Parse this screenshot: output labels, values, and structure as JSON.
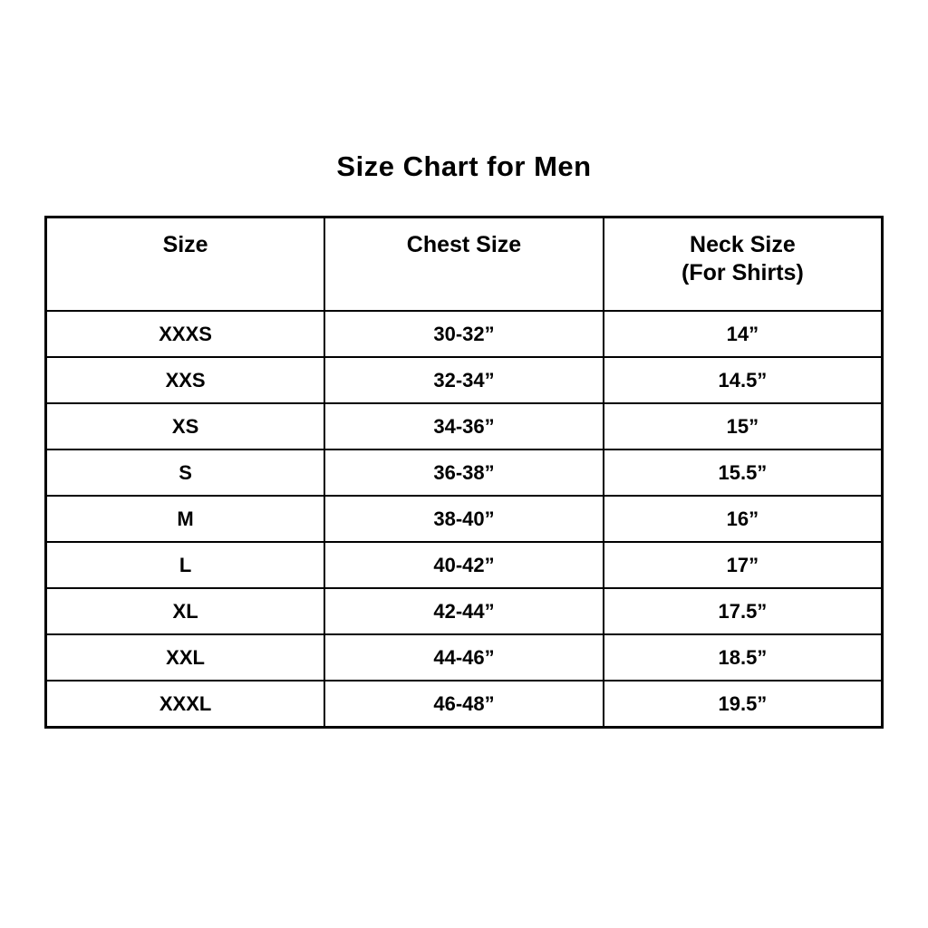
{
  "page": {
    "title": "Size Chart for Men"
  },
  "table": {
    "headers": [
      {
        "line1": "Size",
        "line2": ""
      },
      {
        "line1": "Chest Size",
        "line2": ""
      },
      {
        "line1": "Neck Size",
        "line2": "(For Shirts)"
      }
    ],
    "rows": [
      {
        "size": "XXXS",
        "chest": "30-32”",
        "neck": "14”"
      },
      {
        "size": "XXS",
        "chest": "32-34”",
        "neck": "14.5”"
      },
      {
        "size": "XS",
        "chest": "34-36”",
        "neck": "15”"
      },
      {
        "size": "S",
        "chest": "36-38”",
        "neck": "15.5”"
      },
      {
        "size": "M",
        "chest": "38-40”",
        "neck": "16”"
      },
      {
        "size": "L",
        "chest": "40-42”",
        "neck": "17”"
      },
      {
        "size": "XL",
        "chest": "42-44”",
        "neck": "17.5”"
      },
      {
        "size": "XXL",
        "chest": "44-46”",
        "neck": "18.5”"
      },
      {
        "size": "XXXL",
        "chest": "46-48”",
        "neck": "19.5”"
      }
    ]
  },
  "chart_data": {
    "type": "table",
    "title": "Size Chart for Men",
    "columns": [
      "Size",
      "Chest Size",
      "Neck Size (For Shirts)"
    ],
    "rows": [
      [
        "XXXS",
        "30-32”",
        "14”"
      ],
      [
        "XXS",
        "32-34”",
        "14.5”"
      ],
      [
        "XS",
        "34-36”",
        "15”"
      ],
      [
        "S",
        "36-38”",
        "15.5”"
      ],
      [
        "M",
        "38-40”",
        "16”"
      ],
      [
        "L",
        "40-42”",
        "17”"
      ],
      [
        "XL",
        "42-44”",
        "17.5”"
      ],
      [
        "XXL",
        "44-46”",
        "18.5”"
      ],
      [
        "XXXL",
        "46-48”",
        "19.5”"
      ]
    ]
  }
}
